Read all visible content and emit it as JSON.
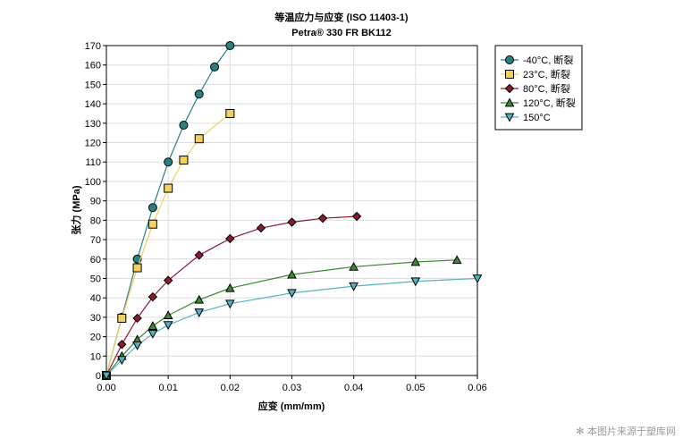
{
  "watermark": "本图片来源于塑库网",
  "chart_data": {
    "type": "line",
    "title": "等温应力与应变 (ISO 11403-1)",
    "subtitle": "Petra® 330 FR BK112",
    "xlabel": "应变 (mm/mm)",
    "ylabel": "张力 (MPa)",
    "xlim": [
      0,
      0.06
    ],
    "ylim": [
      0,
      170
    ],
    "xticks": [
      0.0,
      0.01,
      0.02,
      0.03,
      0.04,
      0.05,
      0.06
    ],
    "xtick_labels": [
      "0.00",
      "0.01",
      "0.02",
      "0.03",
      "0.04",
      "0.05",
      "0.06"
    ],
    "yticks": [
      0,
      10,
      20,
      30,
      40,
      50,
      60,
      70,
      80,
      90,
      100,
      110,
      120,
      130,
      140,
      150,
      160,
      170
    ],
    "ytick_labels": [
      "0",
      "10",
      "20",
      "30",
      "40",
      "50",
      "60",
      "70",
      "80",
      "90",
      "100",
      "110",
      "120",
      "130",
      "140",
      "150",
      "160",
      "170"
    ],
    "grid": true,
    "legend_position": "top-right outside",
    "series": [
      {
        "name": "-40°C, 断裂",
        "color": "#2a8080",
        "marker": "circle",
        "x": [
          0,
          0.0025,
          0.005,
          0.0075,
          0.01,
          0.0125,
          0.015,
          0.0175,
          0.02
        ],
        "y": [
          0,
          30,
          60,
          86.5,
          110,
          129,
          145,
          159,
          170
        ]
      },
      {
        "name": "23°C, 断裂",
        "color": "#f0d060",
        "marker": "square",
        "x": [
          0,
          0.0025,
          0.005,
          0.0075,
          0.01,
          0.0125,
          0.015,
          0.02
        ],
        "y": [
          0,
          29.5,
          55.5,
          78,
          96.5,
          111,
          122,
          135
        ]
      },
      {
        "name": "80°C, 断裂",
        "color": "#8b1a2e",
        "marker": "diamond",
        "x": [
          0,
          0.0025,
          0.005,
          0.0075,
          0.01,
          0.015,
          0.02,
          0.025,
          0.03,
          0.035,
          0.0405
        ],
        "y": [
          0,
          16,
          29.5,
          40.5,
          49,
          62,
          70.5,
          76,
          79,
          81,
          82
        ]
      },
      {
        "name": "120°C, 断裂",
        "color": "#3a8a30",
        "marker": "triangle-up",
        "x": [
          0,
          0.0025,
          0.005,
          0.0075,
          0.01,
          0.015,
          0.02,
          0.03,
          0.04,
          0.05,
          0.0567
        ],
        "y": [
          0,
          10,
          18.5,
          25.5,
          31,
          39,
          45,
          52,
          56,
          58.5,
          59.5
        ]
      },
      {
        "name": "150°C",
        "color": "#5ab0c0",
        "marker": "triangle-down",
        "x": [
          0,
          0.0025,
          0.005,
          0.0075,
          0.01,
          0.015,
          0.02,
          0.03,
          0.04,
          0.05,
          0.06
        ],
        "y": [
          0,
          8,
          15.5,
          21.5,
          26,
          32.5,
          37,
          42.5,
          46,
          48.5,
          50
        ]
      }
    ]
  }
}
